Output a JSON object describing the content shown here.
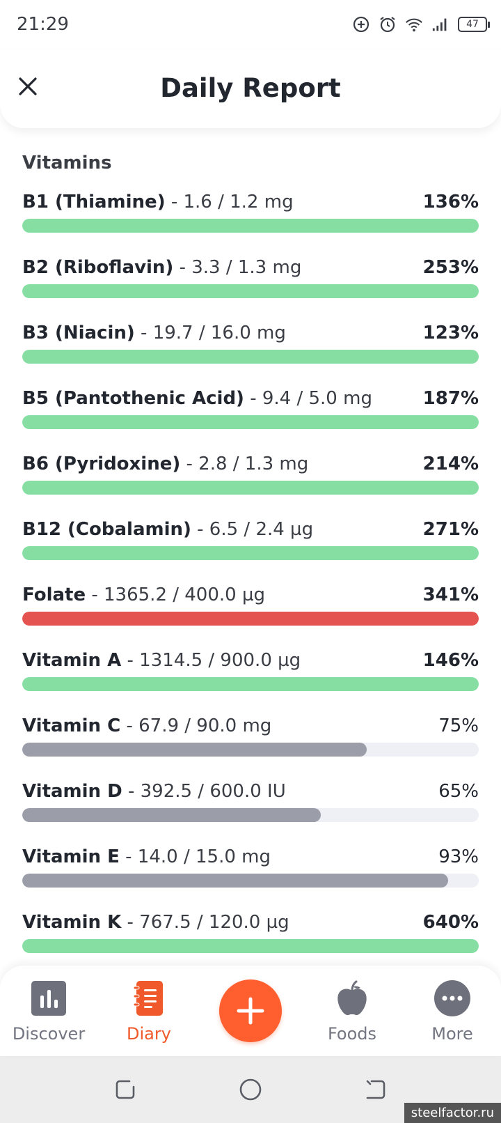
{
  "status_bar": {
    "time": "21:29",
    "battery": "47",
    "icons": [
      "data-saver-icon",
      "alarm-icon",
      "wifi-icon",
      "signal-icon",
      "battery-icon"
    ]
  },
  "header": {
    "title": "Daily Report",
    "close_icon": "close-icon"
  },
  "section": {
    "title": "Vitamins"
  },
  "colors": {
    "over": "#86dea3",
    "excess": "#e55350",
    "under": "#9b9ea9",
    "track": "#eef0f6",
    "accent": "#ff5e2f"
  },
  "nutrients": [
    {
      "name": "B1 (Thiamine)",
      "amount": " - 1.6 / 1.2 mg",
      "percent": "136%",
      "fill": 1.0,
      "status": "over"
    },
    {
      "name": "B2 (Riboflavin)",
      "amount": " - 3.3 / 1.3 mg",
      "percent": "253%",
      "fill": 1.0,
      "status": "over"
    },
    {
      "name": "B3 (Niacin)",
      "amount": " - 19.7 / 16.0 mg",
      "percent": "123%",
      "fill": 1.0,
      "status": "over"
    },
    {
      "name": "B5 (Pantothenic Acid)",
      "amount": " - 9.4 / 5.0 mg",
      "percent": "187%",
      "fill": 1.0,
      "status": "over"
    },
    {
      "name": "B6 (Pyridoxine)",
      "amount": " - 2.8 / 1.3 mg",
      "percent": "214%",
      "fill": 1.0,
      "status": "over"
    },
    {
      "name": "B12 (Cobalamin)",
      "amount": " - 6.5 / 2.4 µg",
      "percent": "271%",
      "fill": 1.0,
      "status": "over"
    },
    {
      "name": "Folate",
      "amount": " - 1365.2 / 400.0 µg",
      "percent": "341%",
      "fill": 1.0,
      "status": "excess"
    },
    {
      "name": "Vitamin A",
      "amount": " - 1314.5 / 900.0 µg",
      "percent": "146%",
      "fill": 1.0,
      "status": "over"
    },
    {
      "name": "Vitamin C",
      "amount": " - 67.9 / 90.0 mg",
      "percent": "75%",
      "fill": 0.755,
      "status": "under"
    },
    {
      "name": "Vitamin D",
      "amount": " - 392.5 / 600.0 IU",
      "percent": "65%",
      "fill": 0.654,
      "status": "under"
    },
    {
      "name": "Vitamin E",
      "amount": " - 14.0 / 15.0 mg",
      "percent": "93%",
      "fill": 0.933,
      "status": "under"
    },
    {
      "name": "Vitamin K",
      "amount": " - 767.5 / 120.0 µg",
      "percent": "640%",
      "fill": 1.0,
      "status": "over"
    }
  ],
  "bottom_nav": {
    "items": [
      {
        "label": "Discover",
        "icon": "bar-chart-icon",
        "active": false
      },
      {
        "label": "Diary",
        "icon": "notebook-icon",
        "active": true
      },
      {
        "label": "Foods",
        "icon": "apple-icon",
        "active": false
      },
      {
        "label": "More",
        "icon": "more-dots-icon",
        "active": false
      }
    ],
    "add_icon": "plus-icon"
  },
  "system_nav": {
    "icons": [
      "recents-icon",
      "home-icon",
      "back-icon"
    ]
  },
  "watermark": "steelfactor.ru"
}
